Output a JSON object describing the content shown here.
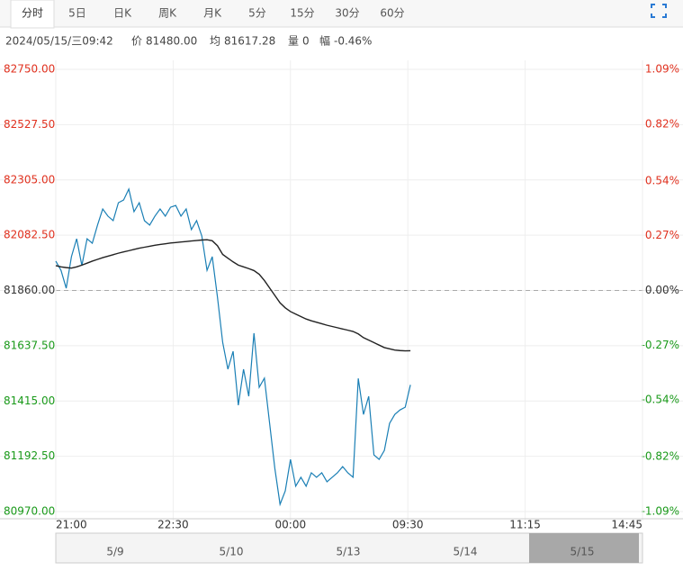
{
  "ui": {
    "tabs": [
      "分时",
      "5日",
      "日K",
      "周K",
      "月K",
      "5分",
      "15分",
      "30分",
      "60分"
    ],
    "info": {
      "date": "2024/05/15/三09:42",
      "price_label": "价",
      "price": "81480.00",
      "avg_label": "均",
      "avg": "81617.28",
      "vol_label": "量",
      "vol": "0",
      "chg_label": "幅",
      "chg": "-0.46%"
    },
    "navigator": [
      "5/9",
      "5/10",
      "5/13",
      "5/14",
      "5/15"
    ]
  },
  "chart_data": {
    "type": "line",
    "x": [
      0,
      4,
      8,
      12,
      16,
      20,
      24,
      28,
      32,
      36,
      40,
      44,
      48,
      52,
      56,
      60,
      64,
      68,
      72,
      76,
      80,
      84,
      88,
      92,
      96,
      100,
      104,
      108,
      112,
      116,
      120,
      124,
      128,
      132,
      136,
      140,
      144,
      148,
      152,
      156,
      160,
      164,
      168,
      172,
      176,
      180,
      184,
      188,
      192,
      196,
      200,
      204,
      208,
      212,
      216,
      220,
      224,
      228,
      232,
      236,
      240,
      244,
      248,
      252,
      256,
      260,
      264,
      268,
      272
    ],
    "series": [
      {
        "name": "价",
        "color": "#1a7fb5",
        "values": [
          81978,
          81941,
          81869,
          81996,
          82068,
          81960,
          82068,
          82050,
          82123,
          82188,
          82159,
          82141,
          82213,
          82224,
          82268,
          82177,
          82213,
          82141,
          82123,
          82159,
          82188,
          82159,
          82195,
          82202,
          82159,
          82188,
          82105,
          82141,
          82079,
          81941,
          81996,
          81833,
          81651,
          81543,
          81615,
          81398,
          81543,
          81434,
          81688,
          81470,
          81507,
          81325,
          81144,
          80999,
          81053,
          81180,
          81072,
          81108,
          81072,
          81126,
          81108,
          81126,
          81090,
          81108,
          81126,
          81151,
          81126,
          81108,
          81506,
          81361,
          81434,
          81198,
          81180,
          81216,
          81325,
          81361,
          81379,
          81390,
          81480
        ]
      },
      {
        "name": "均",
        "color": "#222222",
        "values": [
          81960,
          81955,
          81952,
          81950,
          81955,
          81962,
          81970,
          81978,
          81985,
          81992,
          81998,
          82004,
          82010,
          82015,
          82020,
          82025,
          82030,
          82034,
          82038,
          82042,
          82045,
          82048,
          82051,
          82053,
          82055,
          82057,
          82059,
          82061,
          82063,
          82064,
          82060,
          82040,
          82005,
          81990,
          81975,
          81962,
          81955,
          81948,
          81940,
          81925,
          81900,
          81870,
          81840,
          81810,
          81790,
          81775,
          81765,
          81755,
          81745,
          81738,
          81732,
          81726,
          81720,
          81715,
          81710,
          81705,
          81700,
          81695,
          81685,
          81670,
          81660,
          81650,
          81640,
          81630,
          81625,
          81620,
          81618,
          81617,
          81617.28
        ]
      }
    ],
    "xlim": [
      0,
      450
    ],
    "xticks": [
      {
        "value": 0,
        "label": "21:00"
      },
      {
        "value": 90,
        "label": "22:30"
      },
      {
        "value": 180,
        "label": "00:00"
      },
      {
        "value": 270,
        "label": "09:30"
      },
      {
        "value": 360,
        "label": "11:15"
      },
      {
        "value": 450,
        "label": "14:45"
      }
    ],
    "ylim": [
      80970,
      82750
    ],
    "yticks": [
      {
        "value": 82750,
        "label": "82750.00"
      },
      {
        "value": 82527.5,
        "label": "82527.50"
      },
      {
        "value": 82305,
        "label": "82305.00"
      },
      {
        "value": 82082.5,
        "label": "82082.50"
      },
      {
        "value": 81860,
        "label": "81860.00"
      },
      {
        "value": 81637.5,
        "label": "81637.50"
      },
      {
        "value": 81415,
        "label": "81415.00"
      },
      {
        "value": 81192.5,
        "label": "81192.50"
      },
      {
        "value": 80970,
        "label": "80970.00"
      }
    ],
    "y2lim": [
      -1.09,
      1.09
    ],
    "y2ticks": [
      {
        "value": 1.09,
        "label": "1.09%"
      },
      {
        "value": 0.82,
        "label": "0.82%"
      },
      {
        "value": 0.54,
        "label": "0.54%"
      },
      {
        "value": 0.27,
        "label": "0.27%"
      },
      {
        "value": 0,
        "label": "0.00%"
      },
      {
        "value": -0.27,
        "label": "-0.27%"
      },
      {
        "value": -0.54,
        "label": "-0.54%"
      },
      {
        "value": -0.82,
        "label": "-0.82%"
      },
      {
        "value": -1.09,
        "label": "-1.09%"
      }
    ],
    "grid": true
  }
}
